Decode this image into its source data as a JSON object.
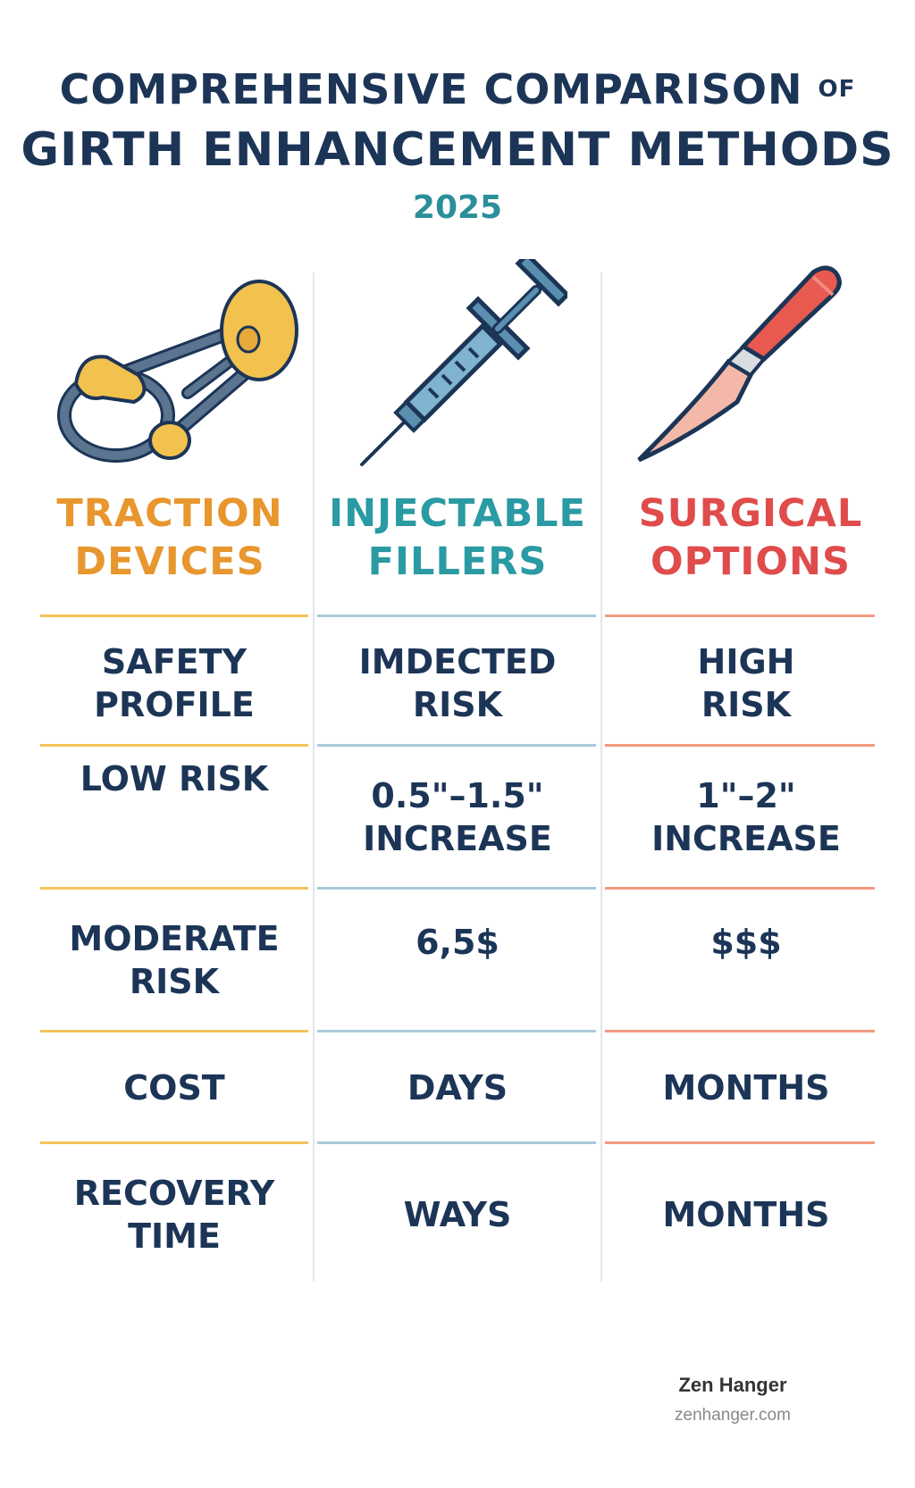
{
  "title": {
    "line1": "COMPREHENSIVE COMPARISON",
    "line1_small": "OF",
    "line2": "GIRTH ENHANCEMENT METHODS",
    "year": "2025"
  },
  "columns": [
    {
      "line1": "TRACTION",
      "line2": "DEVICES",
      "color": "#e8962e",
      "icon": "traction-device-icon"
    },
    {
      "line1": "INJECTABLE",
      "line2": "FILLERS",
      "color": "#2a9aa3",
      "icon": "syringe-icon"
    },
    {
      "line1": "SURGICAL",
      "line2": "OPTIONS",
      "color": "#e04b4b",
      "icon": "scalpel-icon"
    }
  ],
  "rows": [
    [
      "SAFETY PROFILE",
      "IMDECTED RISK",
      "HIGH RISK"
    ],
    [
      "LOW RISK",
      "0.5\"–1.5\" INCREASE",
      "1\"–2\" INCREASE"
    ],
    [
      "MODERATE RISK",
      "6,5$",
      "$$$"
    ],
    [
      "COST",
      "DAYS",
      "MONTHS"
    ],
    [
      "RECOVERY TIME",
      "WAYS",
      "MONTHS"
    ]
  ],
  "rows_display": {
    "r0": {
      "c0a": "SAFETY",
      "c0b": "PROFILE",
      "c1a": "IMDECTED",
      "c1b": "RISK",
      "c2a": "HIGH",
      "c2b": "RISK"
    },
    "r1": {
      "c0a": "LOW RISK",
      "c1a": "0.5\"–1.5\"",
      "c1b": "INCREASE",
      "c2a": "1\"–2\"",
      "c2b": "INCREASE"
    },
    "r2": {
      "c0a": "MODERATE",
      "c0b": "RISK",
      "c1a": "6,5$",
      "c2a": "$$$"
    },
    "r3": {
      "c0a": "COST",
      "c1a": "DAYS",
      "c2a": "MONTHS"
    },
    "r4": {
      "c0a": "RECOVERY",
      "c0b": "TIME",
      "c1a": "WAYS",
      "c2a": "MONTHS"
    }
  },
  "footer": {
    "brand": "Zen Hanger",
    "url": "zenhanger.com"
  }
}
